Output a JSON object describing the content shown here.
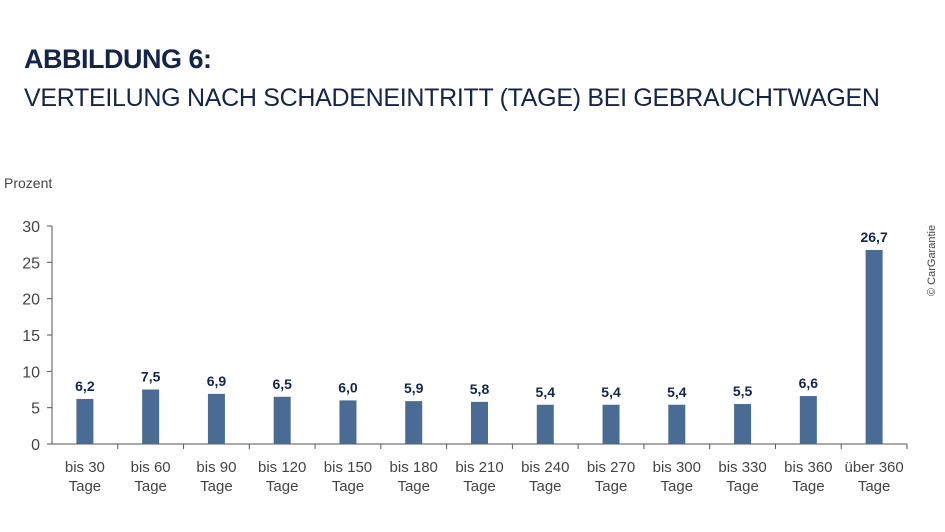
{
  "chart_data": {
    "type": "bar",
    "title": "ABBILDUNG 6:",
    "subtitle": "VERTEILUNG NACH SCHADENEINTRITT (TAGE) BEI GEBRAUCHTWAGEN",
    "ylabel": "Prozent",
    "xlabel": "",
    "ylim": [
      0,
      30
    ],
    "yticks": [
      0,
      5,
      10,
      15,
      20,
      25,
      30
    ],
    "grid": false,
    "categories": [
      [
        "bis 30",
        "Tage"
      ],
      [
        "bis 60",
        "Tage"
      ],
      [
        "bis 90",
        "Tage"
      ],
      [
        "bis 120",
        "Tage"
      ],
      [
        "bis 150",
        "Tage"
      ],
      [
        "bis 180",
        "Tage"
      ],
      [
        "bis 210",
        "Tage"
      ],
      [
        "bis 240",
        "Tage"
      ],
      [
        "bis 270",
        "Tage"
      ],
      [
        "bis 300",
        "Tage"
      ],
      [
        "bis 330",
        "Tage"
      ],
      [
        "bis 360",
        "Tage"
      ],
      [
        "über 360",
        "Tage"
      ]
    ],
    "values": [
      6.2,
      7.5,
      6.9,
      6.5,
      6.0,
      5.9,
      5.8,
      5.4,
      5.4,
      5.4,
      5.5,
      6.6,
      26.7
    ],
    "data_labels": [
      "6,2",
      "7,5",
      "6,9",
      "6,5",
      "6,0",
      "5,9",
      "5,8",
      "5,4",
      "5,4",
      "5,4",
      "5,5",
      "6,6",
      "26,7"
    ],
    "bar_color": "#4a6c94",
    "label_color": "#14254a",
    "credit": "© CarGarantie"
  }
}
